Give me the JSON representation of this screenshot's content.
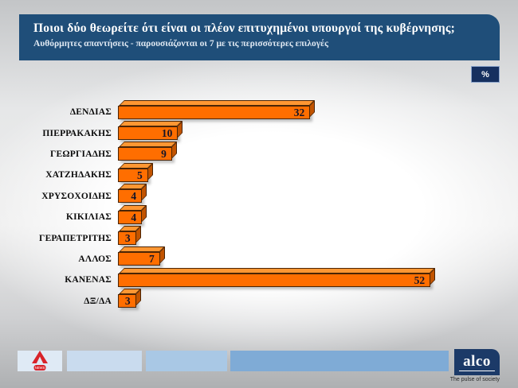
{
  "header": {
    "title": "Ποιοι δύο θεωρείτε ότι είναι οι πλέον επιτυχημένοι υπουργοί της κυβέρνησης;",
    "subtitle": "Αυθόρμητες απαντήσεις - παρουσιάζονται οι 7 με τις περισσότερες επιλογές",
    "bg_color": "#1F4E79"
  },
  "unit_badge": {
    "label": "%",
    "bg_color": "#16305F"
  },
  "chart_data": {
    "type": "bar",
    "orientation": "horizontal",
    "title": "Ποιοι δύο θεωρείτε ότι είναι οι πλέον επιτυχημένοι υπουργοί της κυβέρνησης;",
    "subtitle": "Αυθόρμητες απαντήσεις - παρουσιάζονται οι 7 με τις περισσότερες επιλογές",
    "unit": "%",
    "categories": [
      "ΔΕΝΔΙΑΣ",
      "ΠΙΕΡΡΑΚΑΚΗΣ",
      "ΓΕΩΡΓΙΑΔΗΣ",
      "ΧΑΤΖΗΔΑΚΗΣ",
      "ΧΡΥΣΟΧΟΙΔΗΣ",
      "ΚΙΚΙΛΙΑΣ",
      "ΓΕΡΑΠΕΤΡΙΤΗΣ",
      "ΑΛΛΟΣ",
      "ΚΑΝΕΝΑΣ",
      "ΔΞ/ΔΑ"
    ],
    "values": [
      32,
      10,
      9,
      5,
      4,
      4,
      3,
      7,
      52,
      3
    ],
    "xlim": [
      0,
      55
    ],
    "grid": false,
    "legend": false,
    "value_label_position": "inside-right",
    "style": "3d-horizontal-bars",
    "bar_color": "#FF6E00",
    "bar_top_color": "#FF9733",
    "bar_side_color": "#C25400"
  },
  "footer": {
    "bars": [
      {
        "color": "#DFEAF5"
      },
      {
        "color": "#C9DBEE"
      },
      {
        "color": "#A9C8E5"
      },
      {
        "color": "#7FABD6"
      }
    ],
    "alpha_logo": {
      "banner_text": "NEWS",
      "color": "#D8232A"
    },
    "alco": {
      "brand": "alco",
      "tagline": "The pulse of society",
      "bg_color": "#1C3A68"
    }
  }
}
